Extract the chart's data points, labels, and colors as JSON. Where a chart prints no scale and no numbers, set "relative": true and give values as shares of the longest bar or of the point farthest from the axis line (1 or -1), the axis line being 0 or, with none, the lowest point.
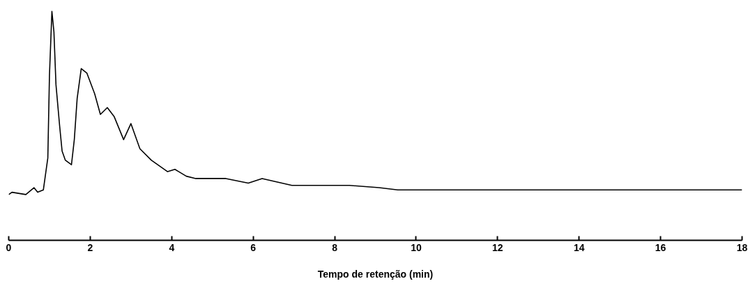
{
  "chart_data": {
    "type": "line",
    "relative": true,
    "xlabel": "Tempo de retenção (min)",
    "xlim": [
      0,
      18
    ],
    "xticks": [
      0,
      2,
      4,
      6,
      8,
      10,
      12,
      14,
      16,
      18
    ],
    "grid": false,
    "marker": "none",
    "line_style": "solid",
    "series": [
      {
        "color": "#000000",
        "x": [
          0,
          0.08,
          0.42,
          0.62,
          0.71,
          0.85,
          0.96,
          1.0,
          1.06,
          1.11,
          1.16,
          1.25,
          1.31,
          1.39,
          1.54,
          1.61,
          1.68,
          1.78,
          1.92,
          2.11,
          2.25,
          2.42,
          2.59,
          2.82,
          3.0,
          3.22,
          3.5,
          3.9,
          4.08,
          4.36,
          4.59,
          4.93,
          5.33,
          5.88,
          6.22,
          6.95,
          8.36,
          9.09,
          9.55,
          13.15,
          18
        ],
        "values": [
          0.2,
          0.21,
          0.2,
          0.23,
          0.21,
          0.22,
          0.36,
          0.72,
          1.0,
          0.91,
          0.68,
          0.5,
          0.39,
          0.35,
          0.33,
          0.44,
          0.62,
          0.75,
          0.73,
          0.64,
          0.55,
          0.58,
          0.54,
          0.44,
          0.51,
          0.4,
          0.35,
          0.3,
          0.31,
          0.28,
          0.27,
          0.27,
          0.27,
          0.25,
          0.27,
          0.24,
          0.24,
          0.23,
          0.22,
          0.22,
          0.22
        ]
      }
    ]
  }
}
